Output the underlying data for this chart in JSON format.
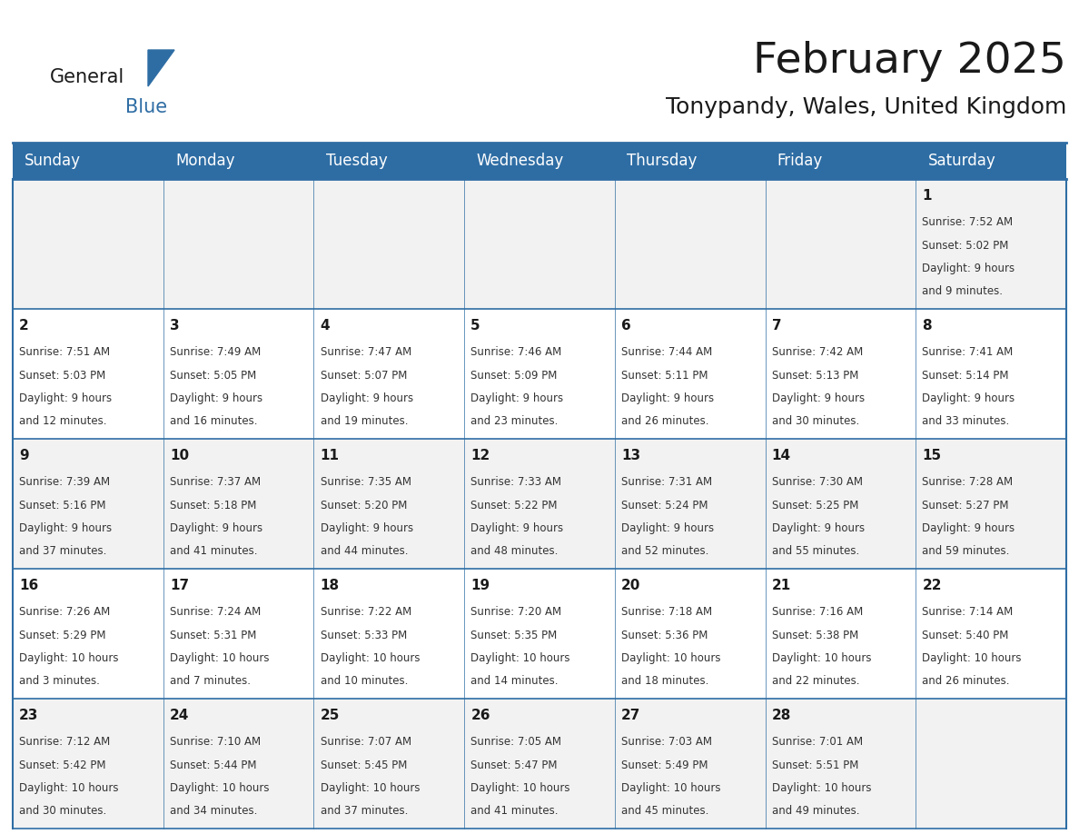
{
  "title": "February 2025",
  "subtitle": "Tonypandy, Wales, United Kingdom",
  "header_bg": "#2E6DA4",
  "header_text": "#FFFFFF",
  "cell_bg_odd": "#F2F2F2",
  "cell_bg_even": "#FFFFFF",
  "border_color": "#2E6DA4",
  "text_color": "#333333",
  "day_number_color": "#1a1a1a",
  "day_names": [
    "Sunday",
    "Monday",
    "Tuesday",
    "Wednesday",
    "Thursday",
    "Friday",
    "Saturday"
  ],
  "days": [
    {
      "day": 1,
      "col": 6,
      "row": 0,
      "sunrise": "7:52 AM",
      "sunset": "5:02 PM",
      "daylight": "9 hours and 9 minutes."
    },
    {
      "day": 2,
      "col": 0,
      "row": 1,
      "sunrise": "7:51 AM",
      "sunset": "5:03 PM",
      "daylight": "9 hours and 12 minutes."
    },
    {
      "day": 3,
      "col": 1,
      "row": 1,
      "sunrise": "7:49 AM",
      "sunset": "5:05 PM",
      "daylight": "9 hours and 16 minutes."
    },
    {
      "day": 4,
      "col": 2,
      "row": 1,
      "sunrise": "7:47 AM",
      "sunset": "5:07 PM",
      "daylight": "9 hours and 19 minutes."
    },
    {
      "day": 5,
      "col": 3,
      "row": 1,
      "sunrise": "7:46 AM",
      "sunset": "5:09 PM",
      "daylight": "9 hours and 23 minutes."
    },
    {
      "day": 6,
      "col": 4,
      "row": 1,
      "sunrise": "7:44 AM",
      "sunset": "5:11 PM",
      "daylight": "9 hours and 26 minutes."
    },
    {
      "day": 7,
      "col": 5,
      "row": 1,
      "sunrise": "7:42 AM",
      "sunset": "5:13 PM",
      "daylight": "9 hours and 30 minutes."
    },
    {
      "day": 8,
      "col": 6,
      "row": 1,
      "sunrise": "7:41 AM",
      "sunset": "5:14 PM",
      "daylight": "9 hours and 33 minutes."
    },
    {
      "day": 9,
      "col": 0,
      "row": 2,
      "sunrise": "7:39 AM",
      "sunset": "5:16 PM",
      "daylight": "9 hours and 37 minutes."
    },
    {
      "day": 10,
      "col": 1,
      "row": 2,
      "sunrise": "7:37 AM",
      "sunset": "5:18 PM",
      "daylight": "9 hours and 41 minutes."
    },
    {
      "day": 11,
      "col": 2,
      "row": 2,
      "sunrise": "7:35 AM",
      "sunset": "5:20 PM",
      "daylight": "9 hours and 44 minutes."
    },
    {
      "day": 12,
      "col": 3,
      "row": 2,
      "sunrise": "7:33 AM",
      "sunset": "5:22 PM",
      "daylight": "9 hours and 48 minutes."
    },
    {
      "day": 13,
      "col": 4,
      "row": 2,
      "sunrise": "7:31 AM",
      "sunset": "5:24 PM",
      "daylight": "9 hours and 52 minutes."
    },
    {
      "day": 14,
      "col": 5,
      "row": 2,
      "sunrise": "7:30 AM",
      "sunset": "5:25 PM",
      "daylight": "9 hours and 55 minutes."
    },
    {
      "day": 15,
      "col": 6,
      "row": 2,
      "sunrise": "7:28 AM",
      "sunset": "5:27 PM",
      "daylight": "9 hours and 59 minutes."
    },
    {
      "day": 16,
      "col": 0,
      "row": 3,
      "sunrise": "7:26 AM",
      "sunset": "5:29 PM",
      "daylight": "10 hours and 3 minutes."
    },
    {
      "day": 17,
      "col": 1,
      "row": 3,
      "sunrise": "7:24 AM",
      "sunset": "5:31 PM",
      "daylight": "10 hours and 7 minutes."
    },
    {
      "day": 18,
      "col": 2,
      "row": 3,
      "sunrise": "7:22 AM",
      "sunset": "5:33 PM",
      "daylight": "10 hours and 10 minutes."
    },
    {
      "day": 19,
      "col": 3,
      "row": 3,
      "sunrise": "7:20 AM",
      "sunset": "5:35 PM",
      "daylight": "10 hours and 14 minutes."
    },
    {
      "day": 20,
      "col": 4,
      "row": 3,
      "sunrise": "7:18 AM",
      "sunset": "5:36 PM",
      "daylight": "10 hours and 18 minutes."
    },
    {
      "day": 21,
      "col": 5,
      "row": 3,
      "sunrise": "7:16 AM",
      "sunset": "5:38 PM",
      "daylight": "10 hours and 22 minutes."
    },
    {
      "day": 22,
      "col": 6,
      "row": 3,
      "sunrise": "7:14 AM",
      "sunset": "5:40 PM",
      "daylight": "10 hours and 26 minutes."
    },
    {
      "day": 23,
      "col": 0,
      "row": 4,
      "sunrise": "7:12 AM",
      "sunset": "5:42 PM",
      "daylight": "10 hours and 30 minutes."
    },
    {
      "day": 24,
      "col": 1,
      "row": 4,
      "sunrise": "7:10 AM",
      "sunset": "5:44 PM",
      "daylight": "10 hours and 34 minutes."
    },
    {
      "day": 25,
      "col": 2,
      "row": 4,
      "sunrise": "7:07 AM",
      "sunset": "5:45 PM",
      "daylight": "10 hours and 37 minutes."
    },
    {
      "day": 26,
      "col": 3,
      "row": 4,
      "sunrise": "7:05 AM",
      "sunset": "5:47 PM",
      "daylight": "10 hours and 41 minutes."
    },
    {
      "day": 27,
      "col": 4,
      "row": 4,
      "sunrise": "7:03 AM",
      "sunset": "5:49 PM",
      "daylight": "10 hours and 45 minutes."
    },
    {
      "day": 28,
      "col": 5,
      "row": 4,
      "sunrise": "7:01 AM",
      "sunset": "5:51 PM",
      "daylight": "10 hours and 49 minutes."
    }
  ],
  "logo_text1": "General",
  "logo_text2": "Blue",
  "logo_color1": "#1a1a1a",
  "logo_color2": "#2E6DA4",
  "logo_triangle_color": "#2E6DA4",
  "figwidth": 11.88,
  "figheight": 9.18,
  "dpi": 100
}
